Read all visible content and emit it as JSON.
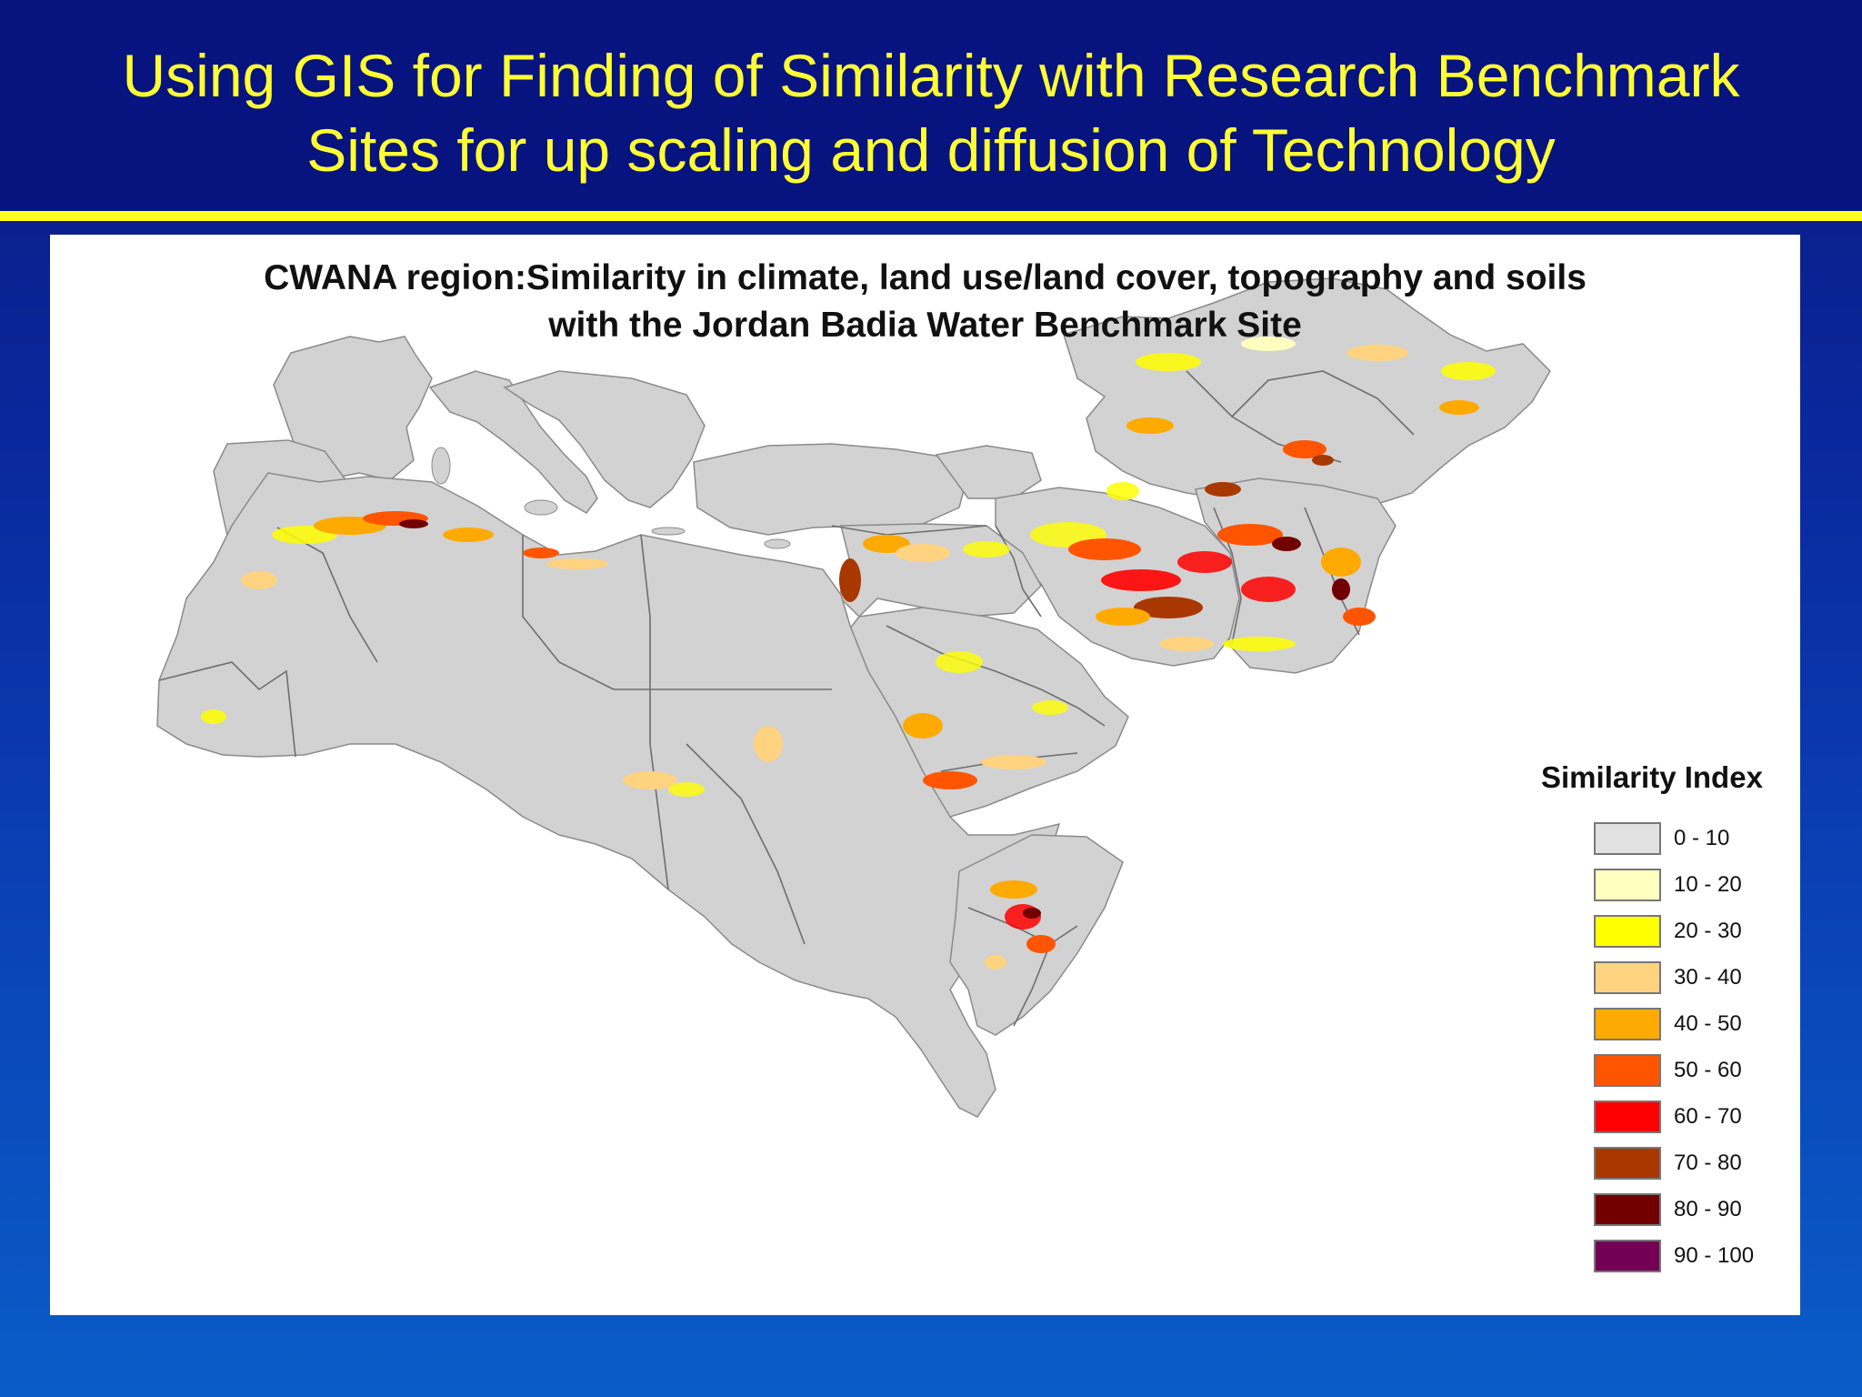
{
  "slide": {
    "title_line1": "Using GIS for Finding of Similarity with Research Benchmark",
    "title_line2": "Sites for up scaling and diffusion of Technology"
  },
  "map": {
    "title_line1": "CWANA region:Similarity in climate, land use/land cover, topography and soils",
    "title_line2": "with the Jordan Badia Water Benchmark Site",
    "colors": {
      "land": "#d2d2d2",
      "border": "#6e6e6e",
      "water": "#ffffff"
    }
  },
  "legend": {
    "title": "Similarity Index",
    "items": [
      {
        "label": "0 - 10",
        "color": "#e1e1e1"
      },
      {
        "label": "10 - 20",
        "color": "#ffffc0"
      },
      {
        "label": "20 - 30",
        "color": "#ffff00"
      },
      {
        "label": "30 - 40",
        "color": "#ffd37f"
      },
      {
        "label": "40 - 50",
        "color": "#ffaa00"
      },
      {
        "label": "50 - 60",
        "color": "#ff5500"
      },
      {
        "label": "60 - 70",
        "color": "#ff0000"
      },
      {
        "label": "70 - 80",
        "color": "#a83800"
      },
      {
        "label": "80 - 90",
        "color": "#730000"
      },
      {
        "label": "90 - 100",
        "color": "#730055"
      }
    ]
  }
}
